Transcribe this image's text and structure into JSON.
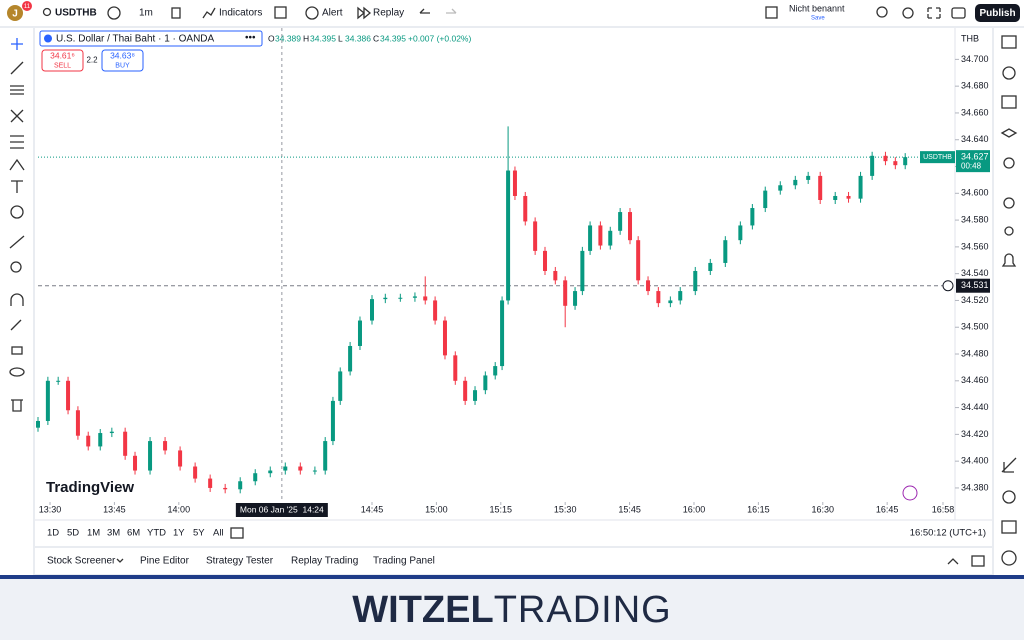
{
  "header": {
    "avatar": "J",
    "badge": "11",
    "symbol": "USDTHB",
    "interval": "1m",
    "indicators": "Indicators",
    "alert": "Alert",
    "replay": "Replay",
    "layout_name": "Nicht benannt",
    "save": "Save",
    "publish": "Publish"
  },
  "legend": {
    "title": "U.S. Dollar / Thai Baht · 1 · OANDA",
    "labels": [
      "O",
      "H",
      "L",
      "C"
    ],
    "values": [
      34.389,
      34.395,
      34.386,
      34.395
    ],
    "change": "+0.007 (+0.02%)",
    "sell_price": "34.61⁶",
    "sell": "SELL",
    "spread": "2.2",
    "buy_price": "34.63⁸",
    "buy": "BUY"
  },
  "watermark": "TradingView",
  "ranges": [
    "1D",
    "5D",
    "1M",
    "3M",
    "6M",
    "YTD",
    "1Y",
    "5Y",
    "All"
  ],
  "clock": "16:50:12 (UTC+1)",
  "tabs": [
    "Stock Screener",
    "Pine Editor",
    "Strategy Tester",
    "Replay Trading",
    "Trading Panel"
  ],
  "brand": {
    "bold": "WITZEL",
    "light": "TRADING"
  },
  "chart_data": {
    "type": "candlestick",
    "currency": "THB",
    "up_color": "#089981",
    "down_color": "#f23645",
    "grid": false,
    "xlim": [
      807.2,
      1020.8
    ],
    "ylim": [
      34.371,
      34.707
    ],
    "xticks": [
      {
        "value": 810,
        "label": "13:30"
      },
      {
        "value": 825,
        "label": "13:45"
      },
      {
        "value": 840,
        "label": "14:00"
      },
      {
        "value": 885,
        "label": "14:45"
      },
      {
        "value": 900,
        "label": "15:00"
      },
      {
        "value": 915,
        "label": "15:15"
      },
      {
        "value": 930,
        "label": "15:30"
      },
      {
        "value": 945,
        "label": "15:45"
      },
      {
        "value": 960,
        "label": "16:00"
      },
      {
        "value": 975,
        "label": "16:15"
      },
      {
        "value": 990,
        "label": "16:30"
      },
      {
        "value": 1005,
        "label": "16:45"
      },
      {
        "value": 1018,
        "label": "16:58"
      }
    ],
    "yticks": [
      {
        "value": 34.38,
        "label": "34.380"
      },
      {
        "value": 34.4,
        "label": "34.400"
      },
      {
        "value": 34.42,
        "label": "34.420"
      },
      {
        "value": 34.44,
        "label": "34.440"
      },
      {
        "value": 34.46,
        "label": "34.460"
      },
      {
        "value": 34.48,
        "label": "34.480"
      },
      {
        "value": 34.5,
        "label": "34.500"
      },
      {
        "value": 34.52,
        "label": "34.520"
      },
      {
        "value": 34.54,
        "label": "34.540"
      },
      {
        "value": 34.56,
        "label": "34.560"
      },
      {
        "value": 34.58,
        "label": "34.580"
      },
      {
        "value": 34.6,
        "label": "34.600"
      },
      {
        "value": 34.62,
        "label": "34.620"
      },
      {
        "value": 34.64,
        "label": "34.640"
      },
      {
        "value": 34.66,
        "label": "34.660"
      },
      {
        "value": 34.68,
        "label": "34.680"
      },
      {
        "value": 34.7,
        "label": "34.700"
      }
    ],
    "last": {
      "name": "USDTHB",
      "price": 34.627,
      "countdown": "00:48"
    },
    "crosshair": {
      "price": 34.531,
      "x": 864,
      "label": "Mon 06 Jan '25  14:24"
    },
    "x": [
      807.2,
      809.5,
      811.9,
      814.2,
      816.5,
      818.9,
      821.7,
      824.4,
      827.5,
      829.8,
      833.3,
      836.8,
      840.3,
      843.8,
      847.3,
      850.8,
      854.3,
      857.8,
      861.3,
      864.8,
      868.3,
      871.7,
      874.1,
      875.9,
      877.6,
      879.9,
      882.2,
      885.0,
      888.1,
      891.6,
      895.0,
      897.4,
      899.7,
      902.0,
      904.4,
      906.7,
      909.0,
      911.4,
      913.7,
      915.3,
      916.7,
      918.3,
      920.7,
      923.0,
      925.3,
      927.7,
      930.0,
      932.3,
      934.0,
      935.8,
      938.2,
      940.5,
      942.8,
      945.1,
      947.0,
      949.3,
      951.7,
      954.5,
      956.8,
      960.3,
      963.8,
      967.3,
      970.8,
      973.6,
      976.6,
      980.1,
      983.6,
      986.6,
      989.4,
      992.9,
      996.0,
      998.8,
      1001.5,
      1004.6,
      1006.9,
      1009.2
    ],
    "open": [
      34.425,
      34.43,
      34.46,
      34.46,
      34.438,
      34.419,
      34.411,
      34.421,
      34.422,
      34.404,
      34.393,
      34.415,
      34.408,
      34.396,
      34.387,
      34.38,
      34.379,
      34.385,
      34.391,
      34.393,
      34.396,
      34.393,
      34.393,
      34.415,
      34.445,
      34.467,
      34.486,
      34.505,
      34.521,
      34.522,
      34.522,
      34.523,
      34.52,
      34.505,
      34.479,
      34.46,
      34.445,
      34.453,
      34.464,
      34.471,
      34.52,
      34.617,
      34.598,
      34.579,
      34.557,
      34.542,
      34.535,
      34.516,
      34.527,
      34.557,
      34.576,
      34.561,
      34.572,
      34.586,
      34.565,
      34.535,
      34.527,
      34.518,
      34.52,
      34.527,
      34.542,
      34.548,
      34.565,
      34.576,
      34.589,
      34.602,
      34.606,
      34.61,
      34.613,
      34.595,
      34.598,
      34.596,
      34.613,
      34.628,
      34.624,
      34.621
    ],
    "high": [
      34.433,
      34.463,
      34.463,
      34.463,
      34.441,
      34.422,
      34.424,
      34.425,
      34.425,
      34.407,
      34.418,
      34.418,
      34.411,
      34.399,
      34.39,
      34.383,
      34.388,
      34.394,
      34.396,
      34.399,
      34.399,
      34.396,
      34.418,
      34.448,
      34.47,
      34.489,
      34.508,
      34.524,
      34.525,
      34.525,
      34.526,
      34.538,
      34.523,
      34.508,
      34.482,
      34.463,
      34.456,
      34.467,
      34.474,
      34.523,
      34.65,
      34.62,
      34.601,
      34.582,
      34.56,
      34.545,
      34.538,
      34.53,
      34.56,
      34.579,
      34.579,
      34.575,
      34.589,
      34.589,
      34.568,
      34.538,
      34.53,
      34.523,
      34.53,
      34.545,
      34.551,
      34.568,
      34.579,
      34.592,
      34.605,
      34.609,
      34.613,
      34.616,
      34.616,
      34.601,
      34.601,
      34.616,
      34.631,
      34.631,
      34.627,
      34.63
    ],
    "low": [
      34.422,
      34.427,
      34.457,
      34.435,
      34.416,
      34.408,
      34.408,
      34.418,
      34.401,
      34.39,
      34.39,
      34.405,
      34.393,
      34.384,
      34.377,
      34.376,
      34.376,
      34.382,
      34.388,
      34.39,
      34.39,
      34.39,
      34.39,
      34.412,
      34.442,
      34.464,
      34.483,
      34.502,
      34.518,
      34.519,
      34.519,
      34.517,
      34.502,
      34.476,
      34.457,
      34.442,
      34.442,
      34.45,
      34.461,
      34.468,
      34.517,
      34.595,
      34.576,
      34.554,
      34.539,
      34.532,
      34.5,
      34.513,
      34.524,
      34.554,
      34.558,
      34.558,
      34.569,
      34.562,
      34.532,
      34.524,
      34.515,
      34.515,
      34.517,
      34.524,
      34.539,
      34.545,
      34.562,
      34.573,
      34.586,
      34.599,
      34.603,
      34.607,
      34.592,
      34.592,
      34.593,
      34.593,
      34.61,
      34.621,
      34.618,
      34.618
    ],
    "close": [
      34.43,
      34.46,
      34.46,
      34.438,
      34.419,
      34.411,
      34.421,
      34.422,
      34.404,
      34.393,
      34.415,
      34.408,
      34.396,
      34.387,
      34.38,
      34.379,
      34.385,
      34.391,
      34.393,
      34.396,
      34.393,
      34.393,
      34.415,
      34.445,
      34.467,
      34.486,
      34.505,
      34.521,
      34.522,
      34.522,
      34.523,
      34.52,
      34.505,
      34.479,
      34.46,
      34.445,
      34.453,
      34.464,
      34.471,
      34.52,
      34.617,
      34.598,
      34.579,
      34.557,
      34.542,
      34.535,
      34.516,
      34.527,
      34.557,
      34.576,
      34.561,
      34.572,
      34.586,
      34.565,
      34.535,
      34.527,
      34.518,
      34.52,
      34.527,
      34.542,
      34.548,
      34.565,
      34.576,
      34.589,
      34.602,
      34.606,
      34.61,
      34.613,
      34.595,
      34.598,
      34.596,
      34.613,
      34.628,
      34.624,
      34.621,
      34.627
    ]
  }
}
